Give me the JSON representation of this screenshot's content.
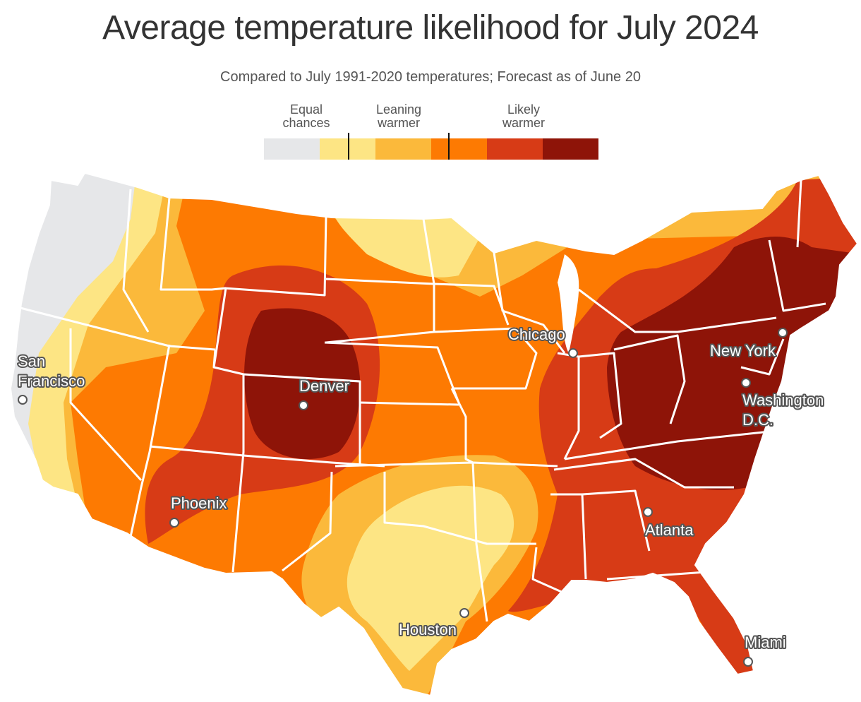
{
  "title": "Average temperature likelihood for July 2024",
  "subtitle": "Compared to July 1991-2020 temperatures; Forecast as of June 20",
  "legend": {
    "groups": [
      {
        "line1": "Equal",
        "line2": "chances"
      },
      {
        "line1": "Leaning",
        "line2": "warmer"
      },
      {
        "line1": "Likely",
        "line2": "warmer"
      }
    ],
    "colors": [
      "#e6e7e9",
      "#fde584",
      "#fbb93b",
      "#fd7a02",
      "#d73b16",
      "#8e1408"
    ]
  },
  "cities": [
    {
      "name": "San Francisco",
      "line1": "San",
      "line2": "Francisco"
    },
    {
      "name": "Denver",
      "line1": "Denver"
    },
    {
      "name": "Phoenix",
      "line1": "Phoenix"
    },
    {
      "name": "Chicago",
      "line1": "Chicago"
    },
    {
      "name": "New York",
      "line1": "New York"
    },
    {
      "name": "Washington D.C.",
      "line1": "Washington",
      "line2": "D.C."
    },
    {
      "name": "Atlanta",
      "line1": "Atlanta"
    },
    {
      "name": "Houston",
      "line1": "Houston"
    },
    {
      "name": "Miami",
      "line1": "Miami"
    }
  ]
}
